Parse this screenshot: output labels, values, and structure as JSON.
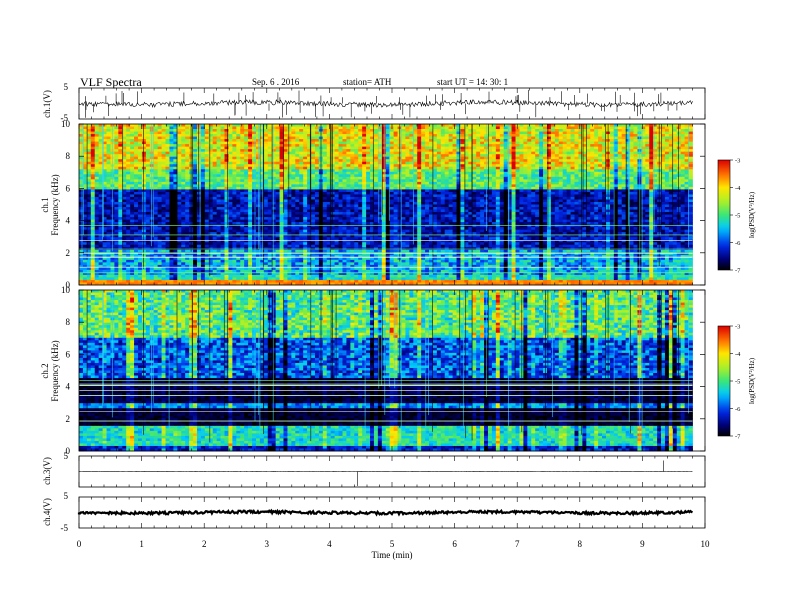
{
  "header": {
    "title": "VLF  Spectra",
    "date": "Sep. 6  . 2016",
    "station": "station= ATH",
    "start": "start  UT  =    14: 30: 1"
  },
  "chart_data": [
    {
      "type": "line",
      "name": "ch1-waveform",
      "ylabel": "ch.1(V)",
      "ylim": [
        -5,
        5
      ],
      "y_ticks": [
        "5",
        "-5"
      ],
      "xlim": [
        0,
        10
      ]
    },
    {
      "type": "heatmap",
      "name": "ch1-spectrogram",
      "ylabel": "ch.1\nFrequency  (kHz)",
      "ylabel_lines": [
        "ch.1",
        "Frequency  (kHz)"
      ],
      "ylim": [
        0,
        10
      ],
      "y_ticks": [
        "0",
        "2",
        "4",
        "6",
        "8",
        "10"
      ],
      "xlim": [
        0,
        10
      ],
      "colorbar": {
        "label": "log(PSD(V²/Hz)",
        "range": [
          -7,
          -3
        ],
        "ticks": [
          "-3",
          "-4",
          "-5",
          "-6",
          "-7"
        ]
      }
    },
    {
      "type": "heatmap",
      "name": "ch2-spectrogram",
      "ylabel_lines": [
        "ch.2",
        "Frequency  (kHz)"
      ],
      "ylim": [
        0,
        10
      ],
      "y_ticks": [
        "0",
        "2",
        "4",
        "6",
        "8",
        "10"
      ],
      "xlim": [
        0,
        10
      ],
      "colorbar": {
        "label": "log(PSD(V²/Hz)",
        "range": [
          -7,
          -3
        ],
        "ticks": [
          "-3",
          "-4",
          "-5",
          "-6",
          "-7"
        ]
      }
    },
    {
      "type": "line",
      "name": "ch3-waveform",
      "ylabel": "ch.3(V)",
      "ylim": [
        -5,
        5
      ],
      "y_ticks": [
        "5"
      ],
      "xlim": [
        0,
        10
      ]
    },
    {
      "type": "line",
      "name": "ch4-waveform",
      "ylabel": "ch.4(V)",
      "ylim": [
        -5,
        5
      ],
      "y_ticks": [
        "5",
        "-5"
      ],
      "xlim": [
        0,
        10
      ]
    }
  ],
  "x_axis": {
    "label": "Time  (min)",
    "range": [
      0,
      10
    ],
    "ticks": [
      "0",
      "1",
      "2",
      "3",
      "4",
      "5",
      "6",
      "7",
      "8",
      "9",
      "10"
    ],
    "data_end": 9.8
  }
}
